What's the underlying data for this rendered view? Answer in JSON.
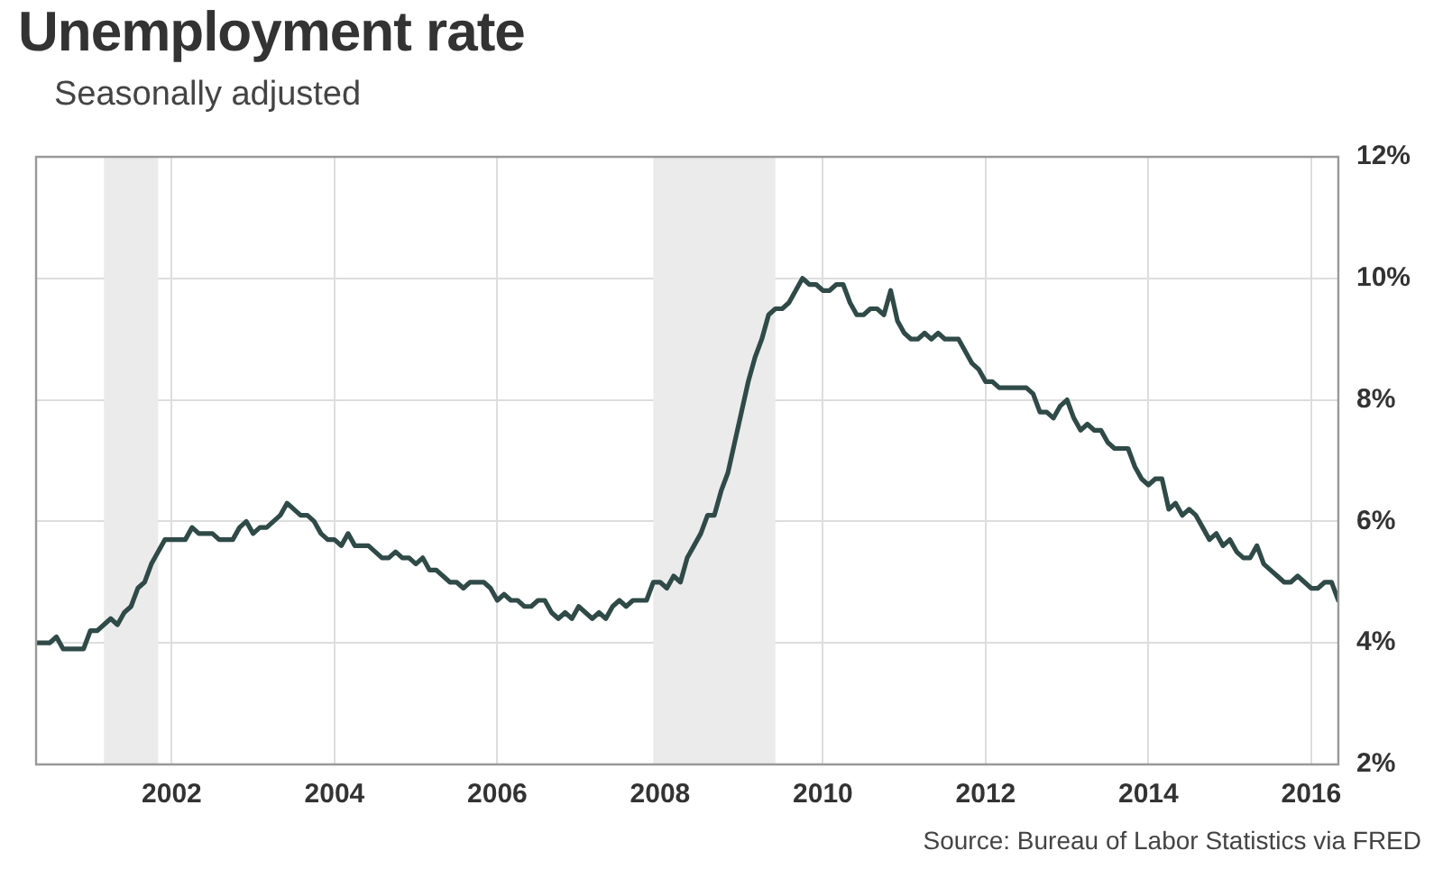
{
  "chart_data": {
    "type": "line",
    "title": "Unemployment rate",
    "subtitle": "Seasonally adjusted",
    "annotations": [
      "Source: Bureau of Labor Statistics via FRED"
    ],
    "x": [
      "2000-05",
      "2000-06",
      "2000-07",
      "2000-08",
      "2000-09",
      "2000-10",
      "2000-11",
      "2000-12",
      "2001-01",
      "2001-02",
      "2001-03",
      "2001-04",
      "2001-05",
      "2001-06",
      "2001-07",
      "2001-08",
      "2001-09",
      "2001-10",
      "2001-11",
      "2001-12",
      "2002-01",
      "2002-02",
      "2002-03",
      "2002-04",
      "2002-05",
      "2002-06",
      "2002-07",
      "2002-08",
      "2002-09",
      "2002-10",
      "2002-11",
      "2002-12",
      "2003-01",
      "2003-02",
      "2003-03",
      "2003-04",
      "2003-05",
      "2003-06",
      "2003-07",
      "2003-08",
      "2003-09",
      "2003-10",
      "2003-11",
      "2003-12",
      "2004-01",
      "2004-02",
      "2004-03",
      "2004-04",
      "2004-05",
      "2004-06",
      "2004-07",
      "2004-08",
      "2004-09",
      "2004-10",
      "2004-11",
      "2004-12",
      "2005-01",
      "2005-02",
      "2005-03",
      "2005-04",
      "2005-05",
      "2005-06",
      "2005-07",
      "2005-08",
      "2005-09",
      "2005-10",
      "2005-11",
      "2005-12",
      "2006-01",
      "2006-02",
      "2006-03",
      "2006-04",
      "2006-05",
      "2006-06",
      "2006-07",
      "2006-08",
      "2006-09",
      "2006-10",
      "2006-11",
      "2006-12",
      "2007-01",
      "2007-02",
      "2007-03",
      "2007-04",
      "2007-05",
      "2007-06",
      "2007-07",
      "2007-08",
      "2007-09",
      "2007-10",
      "2007-11",
      "2007-12",
      "2008-01",
      "2008-02",
      "2008-03",
      "2008-04",
      "2008-05",
      "2008-06",
      "2008-07",
      "2008-08",
      "2008-09",
      "2008-10",
      "2008-11",
      "2008-12",
      "2009-01",
      "2009-02",
      "2009-03",
      "2009-04",
      "2009-05",
      "2009-06",
      "2009-07",
      "2009-08",
      "2009-09",
      "2009-10",
      "2009-11",
      "2009-12",
      "2010-01",
      "2010-02",
      "2010-03",
      "2010-04",
      "2010-05",
      "2010-06",
      "2010-07",
      "2010-08",
      "2010-09",
      "2010-10",
      "2010-11",
      "2010-12",
      "2011-01",
      "2011-02",
      "2011-03",
      "2011-04",
      "2011-05",
      "2011-06",
      "2011-07",
      "2011-08",
      "2011-09",
      "2011-10",
      "2011-11",
      "2011-12",
      "2012-01",
      "2012-02",
      "2012-03",
      "2012-04",
      "2012-05",
      "2012-06",
      "2012-07",
      "2012-08",
      "2012-09",
      "2012-10",
      "2012-11",
      "2012-12",
      "2013-01",
      "2013-02",
      "2013-03",
      "2013-04",
      "2013-05",
      "2013-06",
      "2013-07",
      "2013-08",
      "2013-09",
      "2013-10",
      "2013-11",
      "2013-12",
      "2014-01",
      "2014-02",
      "2014-03",
      "2014-04",
      "2014-05",
      "2014-06",
      "2014-07",
      "2014-08",
      "2014-09",
      "2014-10",
      "2014-11",
      "2014-12",
      "2015-01",
      "2015-02",
      "2015-03",
      "2015-04",
      "2015-05",
      "2015-06",
      "2015-07",
      "2015-08",
      "2015-09",
      "2015-10",
      "2015-11",
      "2015-12",
      "2016-01",
      "2016-02",
      "2016-03",
      "2016-04",
      "2016-05"
    ],
    "series": [
      {
        "color": "#2f4a47",
        "values": [
          4.0,
          4.0,
          4.0,
          4.1,
          3.9,
          3.9,
          3.9,
          3.9,
          4.2,
          4.2,
          4.3,
          4.4,
          4.3,
          4.5,
          4.6,
          4.9,
          5.0,
          5.3,
          5.5,
          5.7,
          5.7,
          5.7,
          5.7,
          5.9,
          5.8,
          5.8,
          5.8,
          5.7,
          5.7,
          5.7,
          5.9,
          6.0,
          5.8,
          5.9,
          5.9,
          6.0,
          6.1,
          6.3,
          6.2,
          6.1,
          6.1,
          6.0,
          5.8,
          5.7,
          5.7,
          5.6,
          5.8,
          5.6,
          5.6,
          5.6,
          5.5,
          5.4,
          5.4,
          5.5,
          5.4,
          5.4,
          5.3,
          5.4,
          5.2,
          5.2,
          5.1,
          5.0,
          5.0,
          4.9,
          5.0,
          5.0,
          5.0,
          4.9,
          4.7,
          4.8,
          4.7,
          4.7,
          4.6,
          4.6,
          4.7,
          4.7,
          4.5,
          4.4,
          4.5,
          4.4,
          4.6,
          4.5,
          4.4,
          4.5,
          4.4,
          4.6,
          4.7,
          4.6,
          4.7,
          4.7,
          4.7,
          5.0,
          5.0,
          4.9,
          5.1,
          5.0,
          5.4,
          5.6,
          5.8,
          6.1,
          6.1,
          6.5,
          6.8,
          7.3,
          7.8,
          8.3,
          8.7,
          9.0,
          9.4,
          9.5,
          9.5,
          9.6,
          9.8,
          10.0,
          9.9,
          9.9,
          9.8,
          9.8,
          9.9,
          9.9,
          9.6,
          9.4,
          9.4,
          9.5,
          9.5,
          9.4,
          9.8,
          9.3,
          9.1,
          9.0,
          9.0,
          9.1,
          9.0,
          9.1,
          9.0,
          9.0,
          9.0,
          8.8,
          8.6,
          8.5,
          8.3,
          8.3,
          8.2,
          8.2,
          8.2,
          8.2,
          8.2,
          8.1,
          7.8,
          7.8,
          7.7,
          7.9,
          8.0,
          7.7,
          7.5,
          7.6,
          7.5,
          7.5,
          7.3,
          7.2,
          7.2,
          7.2,
          6.9,
          6.7,
          6.6,
          6.7,
          6.7,
          6.2,
          6.3,
          6.1,
          6.2,
          6.1,
          5.9,
          5.7,
          5.8,
          5.6,
          5.7,
          5.5,
          5.4,
          5.4,
          5.6,
          5.3,
          5.2,
          5.1,
          5.0,
          5.0,
          5.1,
          5.0,
          4.9,
          4.9,
          5.0,
          5.0,
          4.7
        ]
      }
    ],
    "xlim": [
      "2000-05",
      "2016-05"
    ],
    "xticks": [
      "2002",
      "2004",
      "2006",
      "2008",
      "2010",
      "2012",
      "2014",
      "2016"
    ],
    "ylim": [
      2,
      12
    ],
    "yticks": [
      {
        "value": 2,
        "label": "2%"
      },
      {
        "value": 4,
        "label": "4%"
      },
      {
        "value": 6,
        "label": "6%"
      },
      {
        "value": 8,
        "label": "8%"
      },
      {
        "value": 10,
        "label": "10%"
      },
      {
        "value": 12,
        "label": "12%"
      }
    ],
    "bands": [
      {
        "axis": "x",
        "from": "2001-03",
        "to": "2001-11",
        "color": "#ebebeb"
      },
      {
        "axis": "x",
        "from": "2007-12",
        "to": "2009-06",
        "color": "#ebebeb"
      }
    ],
    "grid": true,
    "legend": false,
    "marker": "none",
    "line_style": "solid"
  }
}
